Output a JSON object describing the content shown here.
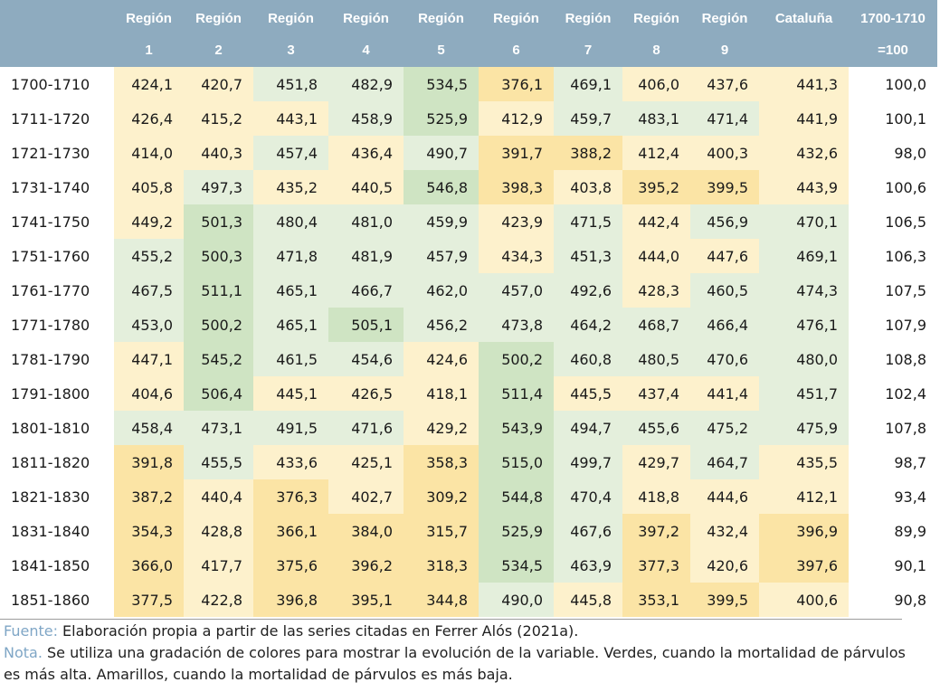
{
  "header": {
    "row1": [
      "",
      "Región",
      "Región",
      "Región",
      "Región",
      "Región",
      "Región",
      "Región",
      "Región",
      "Región",
      "Cataluña",
      "1700-1710"
    ],
    "row2": [
      "",
      "1",
      "2",
      "3",
      "4",
      "5",
      "6",
      "7",
      "8",
      "9",
      "",
      "=100"
    ]
  },
  "colors": {
    "pale_yellow": "#fdf1cc",
    "yellow": "#fbe4a5",
    "deep_yellow": "#f9d98c",
    "pale_green": "#e4efdc",
    "green": "#cfe4c3",
    "deep_green": "#bcdaa9",
    "header_bg": "#8eabbf",
    "notes_label": "#7fa6c6"
  },
  "rows": [
    {
      "period": "1700-1710",
      "cells": [
        "424,1",
        "420,7",
        "451,8",
        "482,9",
        "534,5",
        "376,1",
        "469,1",
        "406,0",
        "437,6",
        "441,3"
      ],
      "index": "100,0"
    },
    {
      "period": "1711-1720",
      "cells": [
        "426,4",
        "415,2",
        "443,1",
        "458,9",
        "525,9",
        "412,9",
        "459,7",
        "483,1",
        "471,4",
        "441,9"
      ],
      "index": "100,1"
    },
    {
      "period": "1721-1730",
      "cells": [
        "414,0",
        "440,3",
        "457,4",
        "436,4",
        "490,7",
        "391,7",
        "388,2",
        "412,4",
        "400,3",
        "432,6"
      ],
      "index": "98,0"
    },
    {
      "period": "1731-1740",
      "cells": [
        "405,8",
        "497,3",
        "435,2",
        "440,5",
        "546,8",
        "398,3",
        "403,8",
        "395,2",
        "399,5",
        "443,9"
      ],
      "index": "100,6"
    },
    {
      "period": "1741-1750",
      "cells": [
        "449,2",
        "501,3",
        "480,4",
        "481,0",
        "459,9",
        "423,9",
        "471,5",
        "442,4",
        "456,9",
        "470,1"
      ],
      "index": "106,5"
    },
    {
      "period": "1751-1760",
      "cells": [
        "455,2",
        "500,3",
        "471,8",
        "481,9",
        "457,9",
        "434,3",
        "451,3",
        "444,0",
        "447,6",
        "469,1"
      ],
      "index": "106,3"
    },
    {
      "period": "1761-1770",
      "cells": [
        "467,5",
        "511,1",
        "465,1",
        "466,7",
        "462,0",
        "457,0",
        "492,6",
        "428,3",
        "460,5",
        "474,3"
      ],
      "index": "107,5"
    },
    {
      "period": "1771-1780",
      "cells": [
        "453,0",
        "500,2",
        "465,1",
        "505,1",
        "456,2",
        "473,8",
        "464,2",
        "468,7",
        "466,4",
        "476,1"
      ],
      "index": "107,9"
    },
    {
      "period": "1781-1790",
      "cells": [
        "447,1",
        "545,2",
        "461,5",
        "454,6",
        "424,6",
        "500,2",
        "460,8",
        "480,5",
        "470,6",
        "480,0"
      ],
      "index": "108,8"
    },
    {
      "period": "1791-1800",
      "cells": [
        "404,6",
        "506,4",
        "445,1",
        "426,5",
        "418,1",
        "511,4",
        "445,5",
        "437,4",
        "441,4",
        "451,7"
      ],
      "index": "102,4"
    },
    {
      "period": "1801-1810",
      "cells": [
        "458,4",
        "473,1",
        "491,5",
        "471,6",
        "429,2",
        "543,9",
        "494,7",
        "455,6",
        "475,2",
        "475,9"
      ],
      "index": "107,8"
    },
    {
      "period": "1811-1820",
      "cells": [
        "391,8",
        "455,5",
        "433,6",
        "425,1",
        "358,3",
        "515,0",
        "499,7",
        "429,7",
        "464,7",
        "435,5"
      ],
      "index": "98,7"
    },
    {
      "period": "1821-1830",
      "cells": [
        "387,2",
        "440,4",
        "376,3",
        "402,7",
        "309,2",
        "544,8",
        "470,4",
        "418,8",
        "444,6",
        "412,1"
      ],
      "index": "93,4"
    },
    {
      "period": "1831-1840",
      "cells": [
        "354,3",
        "428,8",
        "366,1",
        "384,0",
        "315,7",
        "525,9",
        "467,6",
        "397,2",
        "432,4",
        "396,9"
      ],
      "index": "89,9"
    },
    {
      "period": "1841-1850",
      "cells": [
        "366,0",
        "417,7",
        "375,6",
        "396,2",
        "318,3",
        "534,5",
        "463,9",
        "377,3",
        "420,6",
        "397,6"
      ],
      "index": "90,1"
    },
    {
      "period": "1851-1860",
      "cells": [
        "377,5",
        "422,8",
        "396,8",
        "395,1",
        "344,8",
        "490,0",
        "445,8",
        "353,1",
        "399,5",
        "400,6"
      ],
      "index": "90,8"
    }
  ],
  "notes": {
    "source_label": "Fuente:",
    "source_text": " Elaboración propia a partir de las series citadas en Ferrer Alós (2021a).",
    "note_label": "Nota.",
    "note_text": " Se utiliza una gradación de colores para mostrar la evolución de la variable. Verdes, cuando la mortalidad de párvulos es más alta. Amarillos, cuando la mortalidad de párvulos es más baja."
  }
}
